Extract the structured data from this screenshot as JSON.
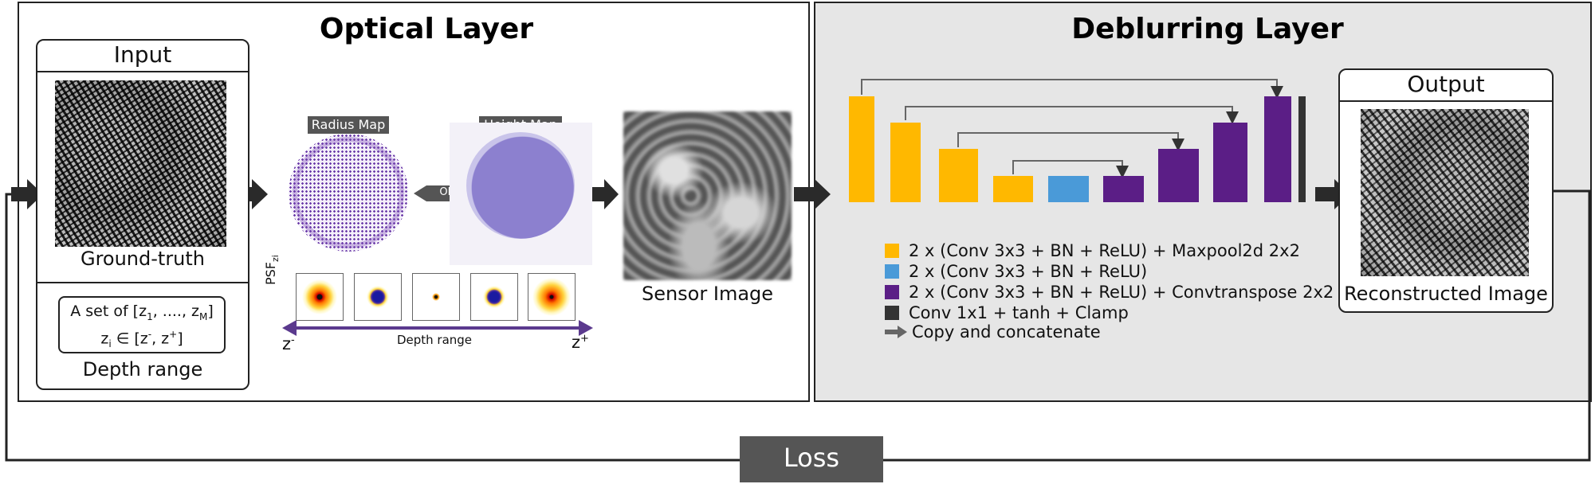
{
  "optical": {
    "title": "Optical Layer",
    "input_title": "Input",
    "input_caption": "Ground-truth",
    "zset_prefix": "A set of [z",
    "zset_sub1": "1",
    "zset_mid": ", ...., z",
    "zset_subM": "M",
    "zset_suffix": "]",
    "zrange_z": "z",
    "zrange_i": "i",
    "zrange_in": " ∈ [z",
    "zrange_minus": "-",
    "zrange_comma": ", z",
    "zrange_plus": "+",
    "zrange_close": "]",
    "depth_caption": "Depth range",
    "radius_map": "Radius Map",
    "height_map": "Height Map",
    "or": "OR",
    "psf_label": "PSF",
    "psf_sub": "zi",
    "depth_axis": "Depth range",
    "z_left": "z",
    "z_left_sup": "-",
    "z_right": "z",
    "z_right_sup": "+",
    "sensor_caption": "Sensor Image"
  },
  "deblur": {
    "title": "Deblurring Layer",
    "output_title": "Output",
    "output_caption": "Reconstructed Image",
    "legend": [
      {
        "color": "#FFB800",
        "text": "2 x (Conv 3x3 + BN + ReLU) + Maxpool2d 2x2"
      },
      {
        "color": "#4A9AD8",
        "text": "2 x (Conv 3x3 + BN + ReLU)"
      },
      {
        "color": "#5B1E86",
        "text": "2 x (Conv 3x3 + BN + ReLU)  + Convtranspose 2x2"
      },
      {
        "color": "#333333",
        "text": "Conv 1x1 + tanh + Clamp"
      },
      {
        "color": "#666666",
        "text": "Copy and concatenate"
      }
    ]
  },
  "loss": "Loss",
  "colors": {
    "encoder": "#FFB800",
    "bottleneck": "#4A9AD8",
    "decoder": "#5B1E86",
    "final": "#333333",
    "panel_bg": "#E6E6E6",
    "tag_bg": "#555555"
  }
}
